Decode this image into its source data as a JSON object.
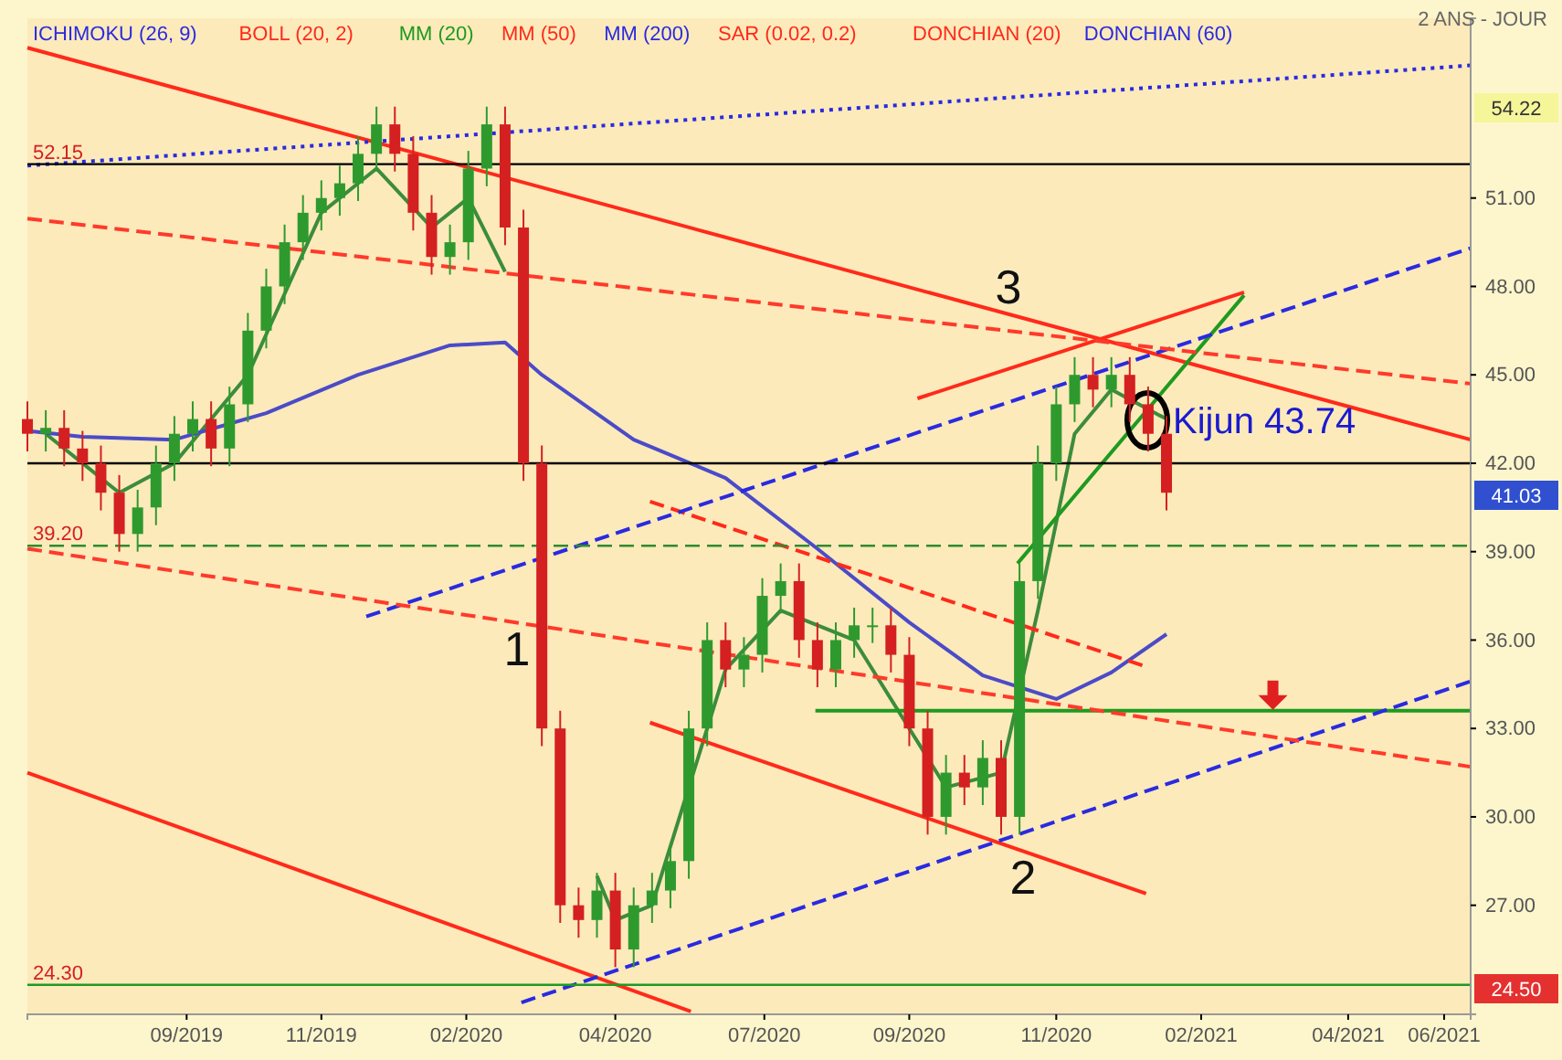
{
  "chart_data": {
    "type": "candlestick",
    "x": [
      "2019-07-08",
      "2019-07-17",
      "2019-07-26",
      "2019-08-04",
      "2019-08-13",
      "2019-08-22",
      "2019-08-31",
      "2019-09-09",
      "2019-09-18",
      "2019-09-27",
      "2019-10-06",
      "2019-10-15",
      "2019-10-24",
      "2019-11-02",
      "2019-11-11",
      "2019-11-20",
      "2019-11-29",
      "2019-12-08",
      "2019-12-17",
      "2019-12-26",
      "2020-01-04",
      "2020-01-13",
      "2020-01-22",
      "2020-01-31",
      "2020-02-09",
      "2020-02-18",
      "2020-02-27",
      "2020-03-07",
      "2020-03-16",
      "2020-03-25",
      "2020-04-03",
      "2020-04-12",
      "2020-04-21",
      "2020-04-30",
      "2020-05-09",
      "2020-05-18",
      "2020-05-27",
      "2020-06-05",
      "2020-06-14",
      "2020-06-23",
      "2020-07-02",
      "2020-07-11",
      "2020-07-20",
      "2020-07-29",
      "2020-08-07",
      "2020-08-16",
      "2020-08-25",
      "2020-09-03",
      "2020-09-12",
      "2020-09-21",
      "2020-09-30",
      "2020-10-09",
      "2020-10-18",
      "2020-10-27",
      "2020-11-05",
      "2020-11-14",
      "2020-11-23",
      "2020-12-02",
      "2020-12-11",
      "2020-12-20",
      "2020-12-29",
      "2021-01-07",
      "2021-01-16"
    ],
    "ohlc": [
      [
        43.5,
        44.1,
        42.4,
        43.0
      ],
      [
        43.0,
        43.8,
        42.4,
        43.2
      ],
      [
        43.2,
        43.8,
        41.9,
        42.5
      ],
      [
        42.5,
        43.1,
        41.4,
        42.0
      ],
      [
        42.0,
        42.6,
        40.4,
        41.0
      ],
      [
        41.0,
        41.6,
        39.0,
        39.6
      ],
      [
        39.6,
        41.1,
        39.0,
        40.5
      ],
      [
        40.5,
        42.6,
        39.9,
        42.0
      ],
      [
        42.0,
        43.6,
        41.4,
        43.0
      ],
      [
        43.0,
        44.1,
        42.4,
        43.5
      ],
      [
        43.5,
        44.1,
        41.9,
        42.5
      ],
      [
        42.5,
        44.6,
        41.9,
        44.0
      ],
      [
        44.0,
        47.1,
        43.4,
        46.5
      ],
      [
        46.5,
        48.6,
        45.9,
        48.0
      ],
      [
        48.0,
        50.1,
        47.4,
        49.5
      ],
      [
        49.5,
        51.1,
        48.9,
        50.5
      ],
      [
        50.5,
        51.6,
        49.9,
        51.0
      ],
      [
        51.0,
        52.1,
        50.4,
        51.5
      ],
      [
        51.5,
        53.1,
        50.9,
        52.5
      ],
      [
        52.5,
        54.1,
        51.9,
        53.5
      ],
      [
        53.5,
        54.1,
        51.9,
        52.5
      ],
      [
        52.5,
        53.1,
        49.9,
        50.5
      ],
      [
        50.5,
        51.1,
        48.4,
        49.0
      ],
      [
        49.0,
        50.1,
        48.4,
        49.5
      ],
      [
        49.5,
        52.6,
        48.9,
        52.0
      ],
      [
        52.0,
        54.1,
        51.4,
        53.5
      ],
      [
        53.5,
        54.1,
        49.4,
        50.0
      ],
      [
        50.0,
        50.6,
        41.4,
        42.0
      ],
      [
        42.0,
        42.6,
        32.4,
        33.0
      ],
      [
        33.0,
        33.6,
        26.4,
        27.0
      ],
      [
        27.0,
        27.6,
        25.9,
        26.5
      ],
      [
        26.5,
        28.1,
        25.9,
        27.5
      ],
      [
        27.5,
        28.1,
        24.9,
        25.5
      ],
      [
        25.5,
        27.6,
        24.9,
        27.0
      ],
      [
        27.0,
        28.1,
        26.4,
        27.5
      ],
      [
        27.5,
        29.1,
        26.9,
        28.5
      ],
      [
        28.5,
        33.6,
        27.9,
        33.0
      ],
      [
        33.0,
        36.6,
        32.4,
        36.0
      ],
      [
        36.0,
        36.6,
        34.4,
        35.0
      ],
      [
        35.0,
        36.1,
        34.4,
        35.5
      ],
      [
        35.5,
        38.1,
        34.9,
        37.5
      ],
      [
        37.5,
        38.6,
        36.9,
        38.0
      ],
      [
        38.0,
        38.6,
        35.4,
        36.0
      ],
      [
        36.0,
        36.6,
        34.4,
        35.0
      ],
      [
        35.0,
        36.6,
        34.4,
        36.0
      ],
      [
        36.0,
        37.1,
        35.4,
        36.5
      ],
      [
        36.5,
        37.1,
        35.9,
        36.5
      ],
      [
        36.5,
        37.1,
        34.9,
        35.5
      ],
      [
        35.5,
        36.1,
        32.4,
        33.0
      ],
      [
        33.0,
        33.6,
        29.4,
        30.0
      ],
      [
        30.0,
        32.1,
        29.4,
        31.5
      ],
      [
        31.5,
        32.1,
        30.4,
        31.0
      ],
      [
        31.0,
        32.6,
        30.4,
        32.0
      ],
      [
        32.0,
        32.6,
        29.4,
        30.0
      ],
      [
        30.0,
        38.6,
        29.4,
        38.0
      ],
      [
        38.0,
        42.6,
        37.4,
        42.0
      ],
      [
        42.0,
        44.6,
        41.4,
        44.0
      ],
      [
        44.0,
        45.6,
        43.4,
        45.0
      ],
      [
        45.0,
        45.6,
        43.9,
        44.5
      ],
      [
        44.5,
        45.6,
        43.9,
        45.0
      ],
      [
        45.0,
        45.6,
        43.4,
        44.0
      ],
      [
        44.0,
        44.6,
        42.4,
        43.0
      ],
      [
        43.0,
        43.6,
        40.4,
        41.0
      ]
    ],
    "series": [
      {
        "type": "line",
        "color": "#3c8c3c",
        "line_style": "solid",
        "x": [
          "2019-07-17",
          "2019-08-22",
          "2019-09-18",
          "2019-10-24",
          "2019-11-29",
          "2019-12-26",
          "2020-01-22",
          "2020-02-09",
          "2020-02-27",
          "2020-03-07",
          "2020-03-16",
          "2020-03-25",
          "2020-04-12",
          "2020-04-21",
          "2020-05-09",
          "2020-05-27",
          "2020-06-14",
          "2020-07-11",
          "2020-08-16",
          "2020-09-12",
          "2020-09-30",
          "2020-10-27",
          "2020-11-14",
          "2020-12-02",
          "2020-12-20",
          "2021-01-16"
        ],
        "values": [
          43,
          41,
          42,
          45,
          50.5,
          52,
          50,
          51,
          48.5,
          null,
          null,
          null,
          28,
          26.5,
          27,
          31,
          35,
          37,
          36,
          33,
          31,
          31.5,
          37,
          43,
          44.5,
          43.5
        ]
      },
      {
        "type": "line",
        "color": "#4b4bc8",
        "line_style": "solid",
        "x": [
          "2019-07-08",
          "2019-08-04",
          "2019-09-18",
          "2019-11-02",
          "2019-12-17",
          "2020-01-31",
          "2020-02-27",
          "2020-03-16",
          "2020-04-30",
          "2020-06-14",
          "2020-07-29",
          "2020-09-12",
          "2020-10-18",
          "2020-11-23",
          "2020-12-20",
          "2021-01-16"
        ],
        "values": [
          43.1,
          42.9,
          42.8,
          43.7,
          45.0,
          46.0,
          46.1,
          45,
          42.8,
          41.5,
          39.1,
          36.6,
          34.8,
          34.0,
          34.9,
          36.2
        ]
      },
      {
        "type": "line",
        "color": "#ff2a1a",
        "line_style": "solid",
        "x": [
          "2019-07-08",
          "2021-06-14"
        ],
        "values": [
          56.1,
          42.8
        ]
      },
      {
        "type": "line",
        "color": "#ff2a1a",
        "line_style": "solid",
        "x": [
          "2019-07-08",
          "2020-05-28"
        ],
        "values": [
          31.5,
          23.4
        ]
      },
      {
        "type": "line",
        "color": "#ff2a1a",
        "line_style": "dashed",
        "x": [
          "2020-05-08",
          "2021-01-06"
        ],
        "values": [
          40.7,
          35.1
        ]
      },
      {
        "type": "line",
        "color": "#ff2a1a",
        "line_style": "solid",
        "x": [
          "2020-05-08",
          "2021-01-06"
        ],
        "values": [
          33.2,
          27.4
        ]
      },
      {
        "type": "line",
        "color": "#ff2a1a",
        "line_style": "solid",
        "x": [
          "2020-09-16",
          "2021-02-23"
        ],
        "values": [
          44.2,
          47.8
        ]
      },
      {
        "type": "line",
        "color": "#1f9a1f",
        "line_style": "solid",
        "x": [
          "2020-11-04",
          "2021-02-23"
        ],
        "values": [
          38.6,
          47.7
        ]
      },
      {
        "type": "line",
        "color": "#1f9a1f",
        "line_style": "solid",
        "x": [
          "2020-07-28",
          "2021-06-14"
        ],
        "values": [
          33.6,
          33.6
        ]
      },
      {
        "type": "line",
        "color": "#2a2ae0",
        "line_style": "dashed",
        "x": [
          "2019-12-21",
          "2021-06-14"
        ],
        "values": [
          36.8,
          49.3
        ]
      },
      {
        "type": "line",
        "color": "#2a2ae0",
        "line_style": "dashed",
        "x": [
          "2020-03-06",
          "2021-06-14"
        ],
        "values": [
          23.7,
          34.6
        ]
      },
      {
        "type": "line",
        "color": "#2a2ae0",
        "line_style": "dotted",
        "x": [
          "2019-07-08",
          "2021-06-14"
        ],
        "values": [
          52.1,
          55.5
        ]
      },
      {
        "type": "line",
        "color": "#ff3a2a",
        "line_style": "dashed",
        "x": [
          "2019-07-08",
          "2021-06-14"
        ],
        "values": [
          50.3,
          44.7
        ]
      },
      {
        "type": "line",
        "color": "#ff3a2a",
        "line_style": "dashed",
        "x": [
          "2019-07-08",
          "2021-06-14"
        ],
        "values": [
          39.1,
          31.7
        ]
      }
    ],
    "xlim": [
      "2019-07-08",
      "2021-06-14"
    ],
    "xticks": [
      {
        "value": "2019-09-24",
        "label": "09/2019"
      },
      {
        "value": "2019-11-29",
        "label": "11/2019"
      },
      {
        "value": "2020-02-08",
        "label": "02/2020"
      },
      {
        "value": "2020-04-21",
        "label": "04/2020"
      },
      {
        "value": "2020-07-03",
        "label": "07/2020"
      },
      {
        "value": "2020-09-12",
        "label": "09/2020"
      },
      {
        "value": "2020-11-23",
        "label": "11/2020"
      },
      {
        "value": "2021-02-02",
        "label": "02/2021"
      },
      {
        "value": "2021-04-15",
        "label": "04/2021"
      },
      {
        "value": "2021-06-01",
        "label": "06/2021"
      }
    ],
    "ylim": [
      23.3,
      57.1
    ],
    "yticks": [
      {
        "value": 27,
        "label": "27.00"
      },
      {
        "value": 30,
        "label": "30.00"
      },
      {
        "value": 33,
        "label": "33.00"
      },
      {
        "value": 36,
        "label": "36.00"
      },
      {
        "value": 39,
        "label": "39.00"
      },
      {
        "value": 42,
        "label": "42.00"
      },
      {
        "value": 45,
        "label": "45.00"
      },
      {
        "value": 48,
        "label": "48.00"
      },
      {
        "value": 51,
        "label": "51.00"
      }
    ],
    "ref_lines": [
      {
        "axis": "y",
        "value": 52.15,
        "label": "52.15",
        "color": "#000000",
        "line_style": "solid"
      },
      {
        "axis": "y",
        "value": 42,
        "label": null,
        "color": "#000000",
        "line_style": "solid"
      },
      {
        "axis": "y",
        "value": 39.2,
        "label": "39.20",
        "color": "#2e8b2e",
        "line_style": "dashed"
      },
      {
        "axis": "y",
        "value": 24.3,
        "label": "24.30",
        "color": "#1f9a1f",
        "line_style": "solid"
      }
    ],
    "annotations": [
      "ICHIMOKU (26, 9)",
      "BOLL (20, 2)",
      "MM (20)",
      "MM (50)",
      "MM (200)",
      "SAR (0.02, 0.2)",
      "DONCHIAN (20)",
      "DONCHIAN (60)",
      "2 ANS - JOUR",
      "1",
      "2",
      "3",
      "Kijun 43.74",
      "54.22",
      "41.03",
      "24.50"
    ]
  }
}
